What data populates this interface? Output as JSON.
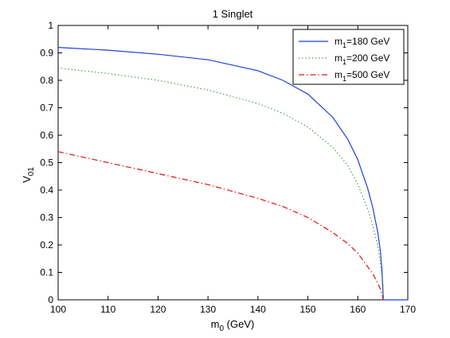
{
  "chart_data": {
    "type": "line",
    "title": "1 Singlet",
    "xlabel": {
      "base": "m",
      "sub": "0",
      "tail": " (GeV)"
    },
    "ylabel": {
      "base": "V",
      "sub": "01"
    },
    "xlim": [
      100,
      170
    ],
    "ylim": [
      0,
      1
    ],
    "xticks": [
      100,
      110,
      120,
      130,
      140,
      150,
      160,
      170
    ],
    "yticks": [
      0,
      0.1,
      0.2,
      0.3,
      0.4,
      0.5,
      0.6,
      0.7,
      0.8,
      0.9,
      1
    ],
    "xtick_labels": [
      "100",
      "110",
      "120",
      "130",
      "140",
      "150",
      "160",
      "170"
    ],
    "ytick_labels": [
      "0",
      "0.1",
      "0.2",
      "0.3",
      "0.4",
      "0.5",
      "0.6",
      "0.7",
      "0.8",
      "0.9",
      "1"
    ],
    "grid": false,
    "legend": "top-right",
    "series": [
      {
        "name": "m1=180 GeV",
        "label": {
          "base": "m",
          "sub": "1",
          "tail": "=180 GeV"
        },
        "color": "#1f3fdc",
        "style": "solid",
        "x": [
          100,
          110,
          120,
          130,
          140,
          145,
          150,
          155,
          158,
          160,
          162,
          163,
          164,
          164.5,
          164.8,
          165,
          165.1
        ],
        "y": [
          0.92,
          0.91,
          0.895,
          0.875,
          0.835,
          0.8,
          0.75,
          0.665,
          0.585,
          0.51,
          0.405,
          0.335,
          0.245,
          0.18,
          0.115,
          0.05,
          0.0
        ]
      },
      {
        "name": "m1=200 GeV",
        "label": {
          "base": "m",
          "sub": "1",
          "tail": "=200 GeV"
        },
        "color": "#2a8a2a",
        "style": "dotted",
        "x": [
          100,
          110,
          120,
          130,
          140,
          145,
          150,
          155,
          158,
          160,
          162,
          163,
          164,
          164.5,
          164.8,
          165,
          165.1
        ],
        "y": [
          0.845,
          0.825,
          0.8,
          0.765,
          0.715,
          0.68,
          0.63,
          0.555,
          0.49,
          0.42,
          0.33,
          0.27,
          0.195,
          0.14,
          0.09,
          0.04,
          0.0
        ]
      },
      {
        "name": "m1=500 GeV",
        "label": {
          "base": "m",
          "sub": "1",
          "tail": "=500 GeV"
        },
        "color": "#e01010",
        "style": "dashdot",
        "x": [
          100,
          110,
          120,
          130,
          140,
          145,
          150,
          155,
          158,
          160,
          162,
          163,
          164,
          164.5,
          165,
          165.1
        ],
        "y": [
          0.54,
          0.5,
          0.46,
          0.42,
          0.37,
          0.34,
          0.3,
          0.245,
          0.205,
          0.17,
          0.12,
          0.095,
          0.06,
          0.04,
          0.01,
          0.0
        ]
      }
    ]
  }
}
